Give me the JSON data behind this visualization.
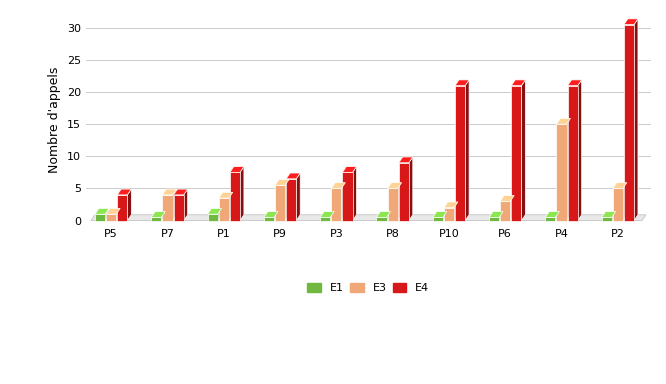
{
  "categories": [
    "P5",
    "P7",
    "P1",
    "P9",
    "P3",
    "P8",
    "P10",
    "P6",
    "P4",
    "P2"
  ],
  "E1": [
    1,
    0.5,
    1,
    0.5,
    0.5,
    0.5,
    0.5,
    0.5,
    0.5,
    0.5
  ],
  "E3": [
    1,
    4,
    3.5,
    5.5,
    5,
    5,
    2,
    3,
    15,
    5
  ],
  "E4": [
    4,
    4,
    7.5,
    6.5,
    7.5,
    9,
    21,
    21,
    21,
    30.5
  ],
  "color_E1": "#70b840",
  "color_E3": "#f0a878",
  "color_E4": "#d81818",
  "ylabel": "Nombre d'appels",
  "ylim": [
    0,
    32
  ],
  "yticks": [
    0,
    5,
    10,
    15,
    20,
    25,
    30
  ],
  "legend_labels": [
    "E1",
    "E3",
    "E4"
  ],
  "background_color": "#ffffff",
  "plot_bg": "#f5f5f5",
  "grid_color": "#cccccc"
}
